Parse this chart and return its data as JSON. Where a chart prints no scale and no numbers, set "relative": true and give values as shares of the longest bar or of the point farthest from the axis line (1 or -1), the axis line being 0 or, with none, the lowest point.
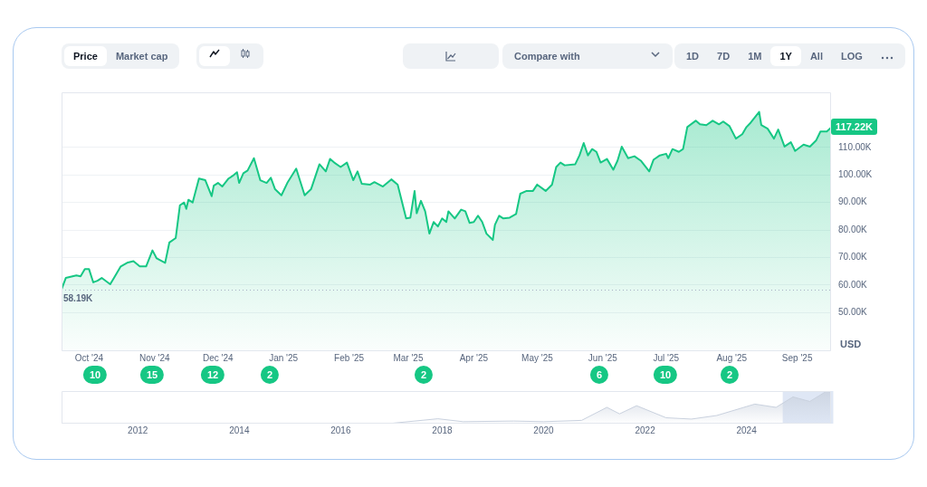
{
  "chart_data": [
    {
      "type": "area",
      "ylabel": "USD",
      "color": "#16c784",
      "grid": "y",
      "line_style": "solid",
      "marker": "none",
      "x": [
        "2024-09-18",
        "2024-09-20",
        "2024-09-25",
        "2024-09-27",
        "2024-09-29",
        "2024-10-01",
        "2024-10-03",
        "2024-10-05",
        "2024-10-07",
        "2024-10-11",
        "2024-10-13",
        "2024-10-16",
        "2024-10-19",
        "2024-10-22",
        "2024-10-25",
        "2024-10-28",
        "2024-10-31",
        "2024-11-02",
        "2024-11-06",
        "2024-11-08",
        "2024-11-11",
        "2024-11-13",
        "2024-11-15",
        "2024-11-16",
        "2024-11-17",
        "2024-11-19",
        "2024-11-22",
        "2024-11-25",
        "2024-11-28",
        "2024-11-29",
        "2024-12-01",
        "2024-12-03",
        "2024-12-06",
        "2024-12-08",
        "2024-12-10",
        "2024-12-11",
        "2024-12-13",
        "2024-12-15",
        "2024-12-18",
        "2024-12-21",
        "2024-12-24",
        "2024-12-26",
        "2024-12-28",
        "2024-12-31",
        "2025-01-03",
        "2025-01-07",
        "2025-01-11",
        "2025-01-14",
        "2025-01-18",
        "2025-01-21",
        "2025-01-23",
        "2025-01-25",
        "2025-01-28",
        "2025-01-31",
        "2025-02-03",
        "2025-02-05",
        "2025-02-07",
        "2025-02-11",
        "2025-02-13",
        "2025-02-17",
        "2025-02-21",
        "2025-02-24",
        "2025-02-28",
        "2025-03-02",
        "2025-03-04",
        "2025-03-05",
        "2025-03-07",
        "2025-03-09",
        "2025-03-11",
        "2025-03-13",
        "2025-03-15",
        "2025-03-17",
        "2025-03-19",
        "2025-03-20",
        "2025-03-23",
        "2025-03-26",
        "2025-03-28",
        "2025-03-30",
        "2025-04-01",
        "2025-04-03",
        "2025-04-05",
        "2025-04-07",
        "2025-04-10",
        "2025-04-11",
        "2025-04-13",
        "2025-04-15",
        "2025-04-18",
        "2025-04-21",
        "2025-04-23",
        "2025-04-26",
        "2025-04-29",
        "2025-05-01",
        "2025-05-05",
        "2025-05-08",
        "2025-05-10",
        "2025-05-12",
        "2025-05-14",
        "2025-05-19",
        "2025-05-21",
        "2025-05-23",
        "2025-05-25",
        "2025-05-27",
        "2025-05-29",
        "2025-05-31",
        "2025-06-03",
        "2025-06-06",
        "2025-06-08",
        "2025-06-10",
        "2025-06-13",
        "2025-06-16",
        "2025-06-19",
        "2025-06-23",
        "2025-06-25",
        "2025-06-28",
        "2025-07-01",
        "2025-07-02",
        "2025-07-04",
        "2025-07-07",
        "2025-07-09",
        "2025-07-11",
        "2025-07-15",
        "2025-07-17",
        "2025-07-20",
        "2025-07-23",
        "2025-07-26",
        "2025-07-28",
        "2025-07-31",
        "2025-08-03",
        "2025-08-06",
        "2025-08-08",
        "2025-08-10",
        "2025-08-14",
        "2025-08-15",
        "2025-08-18",
        "2025-08-21",
        "2025-08-23",
        "2025-08-26",
        "2025-08-29",
        "2025-08-31",
        "2025-09-04",
        "2025-09-07",
        "2025-09-10",
        "2025-09-12",
        "2025-09-15",
        "2025-09-17"
      ],
      "values": [
        58500,
        62600,
        63500,
        63200,
        65800,
        65800,
        61000,
        61600,
        62600,
        60300,
        62900,
        66800,
        68100,
        68700,
        66800,
        66800,
        72600,
        69700,
        68100,
        75500,
        77100,
        89000,
        90000,
        87700,
        91000,
        90000,
        98700,
        98100,
        92300,
        96100,
        97100,
        95800,
        98700,
        99700,
        101000,
        97100,
        100600,
        101600,
        106100,
        98100,
        97100,
        99000,
        94800,
        92600,
        97400,
        102300,
        92600,
        94800,
        103900,
        101300,
        105800,
        104500,
        102900,
        104500,
        98100,
        101300,
        96800,
        96500,
        97400,
        95800,
        98400,
        96500,
        84200,
        84500,
        94200,
        86100,
        90600,
        86800,
        78700,
        82900,
        81300,
        84200,
        82900,
        86800,
        84200,
        87400,
        86800,
        82600,
        82900,
        85200,
        82900,
        78700,
        76400,
        81900,
        85200,
        84200,
        84500,
        85800,
        93200,
        94200,
        94200,
        96500,
        94200,
        96500,
        102900,
        104500,
        103500,
        103900,
        107100,
        111600,
        107100,
        109400,
        108400,
        104500,
        105800,
        101900,
        105200,
        110300,
        106100,
        106800,
        105200,
        101300,
        105500,
        107100,
        107700,
        106100,
        109400,
        108400,
        109400,
        117400,
        119700,
        118400,
        118100,
        119700,
        118400,
        119400,
        117700,
        113200,
        114800,
        117400,
        119000,
        122900,
        118100,
        116800,
        113200,
        116500,
        110300,
        111900,
        108700,
        111000,
        110300,
        112600,
        115800,
        115800,
        117200
      ],
      "xlim": [
        "2024-09-18",
        "2025-09-17"
      ],
      "xticks": [
        {
          "value": "2024-10-01",
          "label": "Oct '24"
        },
        {
          "value": "2024-11-01",
          "label": "Nov '24"
        },
        {
          "value": "2024-12-01",
          "label": "Dec '24"
        },
        {
          "value": "2025-01-01",
          "label": "Jan '25"
        },
        {
          "value": "2025-02-01",
          "label": "Feb '25"
        },
        {
          "value": "2025-03-01",
          "label": "Mar '25"
        },
        {
          "value": "2025-04-01",
          "label": "Apr '25"
        },
        {
          "value": "2025-05-01",
          "label": "May '25"
        },
        {
          "value": "2025-06-01",
          "label": "Jun '25"
        },
        {
          "value": "2025-07-01",
          "label": "Jul '25"
        },
        {
          "value": "2025-08-01",
          "label": "Aug '25"
        },
        {
          "value": "2025-09-01",
          "label": "Sep '25"
        }
      ],
      "ylim": [
        36000,
        130000
      ],
      "yticks": [
        {
          "value": 50000,
          "label": "50.00K"
        },
        {
          "value": 60000,
          "label": "60.00K"
        },
        {
          "value": 70000,
          "label": "70.00K"
        },
        {
          "value": 80000,
          "label": "80.00K"
        },
        {
          "value": 90000,
          "label": "90.00K"
        },
        {
          "value": 100000,
          "label": "100.00K"
        },
        {
          "value": 110000,
          "label": "110.00K"
        }
      ],
      "ref_lines": [
        {
          "axis": "y",
          "value": 58190,
          "label": "58.19K",
          "color": "#a6b0c3",
          "line_style": "dotted"
        }
      ],
      "annotations": [
        "Price",
        "Market cap",
        "Compare with",
        "1D",
        "7D",
        "1M",
        "1Y",
        "All",
        "LOG",
        {
          "text": "117.22K",
          "x": "2025-09-17",
          "y": 117200
        },
        "10",
        "15",
        "12",
        "2",
        "2",
        "6",
        "10",
        "2"
      ]
    },
    {
      "type": "area",
      "relative": true,
      "color": "#c9d1de",
      "grid": false,
      "x": [
        "2010-07",
        "2013-11",
        "2017-01",
        "2017-12",
        "2018-06",
        "2019-06",
        "2020-01",
        "2020-10",
        "2021-04",
        "2021-07",
        "2021-11",
        "2022-06",
        "2022-12",
        "2023-06",
        "2024-03",
        "2024-08",
        "2024-12",
        "2025-04",
        "2025-08",
        "2025-09"
      ],
      "values": [
        0,
        0.01,
        0.01,
        0.15,
        0.06,
        0.08,
        0.06,
        0.1,
        0.5,
        0.3,
        0.55,
        0.18,
        0.14,
        0.25,
        0.6,
        0.5,
        0.82,
        0.68,
        1,
        0.95
      ],
      "xlim": [
        "2010-07",
        "2025-09"
      ],
      "xticks": [
        "2012",
        "2014",
        "2016",
        "2018",
        "2020",
        "2022",
        "2024"
      ],
      "bands": [
        {
          "axis": "x",
          "from": "2024-09-18",
          "to": "2025-09-17",
          "color": "#dfe7f5"
        }
      ]
    }
  ]
}
